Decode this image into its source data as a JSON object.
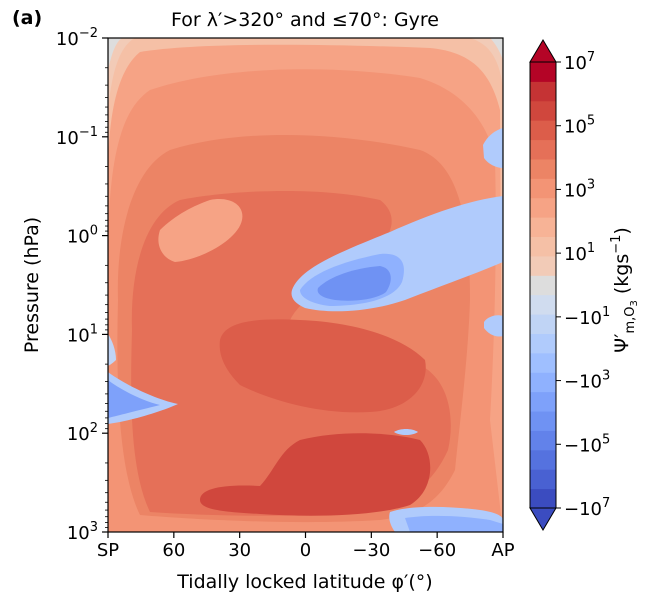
{
  "chart_data": {
    "type": "heatmap",
    "panel_label": "(a)",
    "title": "For λ′>320° and ≤70°: Gyre",
    "xlabel": "Tidally locked latitude φ′(°)",
    "ylabel": "Pressure (hPa)",
    "y_scale": "log",
    "y_inverted": true,
    "ylim": [
      1000,
      0.01
    ],
    "xlim": [
      90,
      -90
    ],
    "x_ticks": [
      {
        "value": 90,
        "label": "SP"
      },
      {
        "value": 60,
        "label": "60"
      },
      {
        "value": 30,
        "label": "30"
      },
      {
        "value": 0,
        "label": "0"
      },
      {
        "value": -30,
        "label": "−30"
      },
      {
        "value": -60,
        "label": "−60"
      },
      {
        "value": -90,
        "label": "AP"
      }
    ],
    "y_ticks": [
      {
        "value": 0.01,
        "base": "10",
        "exp": "−2"
      },
      {
        "value": 0.1,
        "base": "10",
        "exp": "−1"
      },
      {
        "value": 1,
        "base": "10",
        "exp": "0"
      },
      {
        "value": 10,
        "base": "10",
        "exp": "1"
      },
      {
        "value": 100,
        "base": "10",
        "exp": "2"
      },
      {
        "value": 1000,
        "base": "10",
        "exp": "3"
      }
    ],
    "colorbar": {
      "label": "Ψ′m,O3 (kgs−1)",
      "label_parts": {
        "symbol": "Ψ′",
        "sub": "m,O",
        "sub2": "3",
        "unit_open": "(kgs",
        "unit_exp": "−1",
        "unit_close": ")"
      },
      "levels": [
        "-1e7",
        "-3e6",
        "-1e6",
        "-3e5",
        "-1e5",
        "-3e4",
        "-1e4",
        "-3e3",
        "-1e3",
        "-3e2",
        "-1e2",
        "-3e1",
        "-1e1",
        "1e1",
        "3e1",
        "1e2",
        "3e2",
        "1e3",
        "3e3",
        "1e4",
        "3e4",
        "1e5",
        "3e5",
        "1e6",
        "3e6",
        "1e7"
      ],
      "extend": "both",
      "tick_labels": [
        {
          "base": "10",
          "exp": "7",
          "sign": ""
        },
        {
          "base": "10",
          "exp": "5",
          "sign": ""
        },
        {
          "base": "10",
          "exp": "3",
          "sign": ""
        },
        {
          "base": "10",
          "exp": "1",
          "sign": ""
        },
        {
          "base": "10",
          "exp": "1",
          "sign": "−"
        },
        {
          "base": "10",
          "exp": "3",
          "sign": "−"
        },
        {
          "base": "10",
          "exp": "5",
          "sign": "−"
        },
        {
          "base": "10",
          "exp": "7",
          "sign": "−"
        }
      ],
      "positive_colors": [
        "#f2cbb7",
        "#f5c0a6",
        "#f7b396",
        "#f6a385",
        "#f39475",
        "#ec8465",
        "#e57058",
        "#dc5d4a",
        "#d0473d",
        "#c53334",
        "#b40426"
      ],
      "negative_colors": [
        "#d0dcef",
        "#c0d4f5",
        "#b0cbfc",
        "#9fbfff",
        "#8fb1fe",
        "#7ea1fa",
        "#6f92f3",
        "#6282ea",
        "#5572df",
        "#4961d2",
        "#3b4cc0"
      ],
      "zero_band_color": "#dddddd"
    },
    "regions": [
      {
        "value_range": "1e1 to 1e2",
        "description": "top corners and upper-boundary band"
      },
      {
        "value_range": "1e2 to 1e3",
        "description": "outer envelope from top edge down across the domain"
      },
      {
        "value_range": "1e3 to 1e4",
        "description": "broad band filling most of the domain"
      },
      {
        "value_range": "1e4 to 1e5",
        "description": "large interior region from 0.03 hPa to 1000 hPa"
      },
      {
        "value_range": "1e5 to 1e6",
        "description": "central tongue near 0.2-1 hPa and lower lobes"
      },
      {
        "value_range": "1e6 to 1e7",
        "description": "maxima near 5-25 hPa at 20 to -20 deg and 150-400 hPa"
      },
      {
        "value_range": "-1e2 to -1e5",
        "description": "negative lobe near 0.5-5 hPa from 0 to -90 deg"
      },
      {
        "value_range": "-1e2 to -1e4",
        "description": "small negative patches near SP at 10-100 hPa and near AP at 600-1000 hPa"
      }
    ]
  }
}
